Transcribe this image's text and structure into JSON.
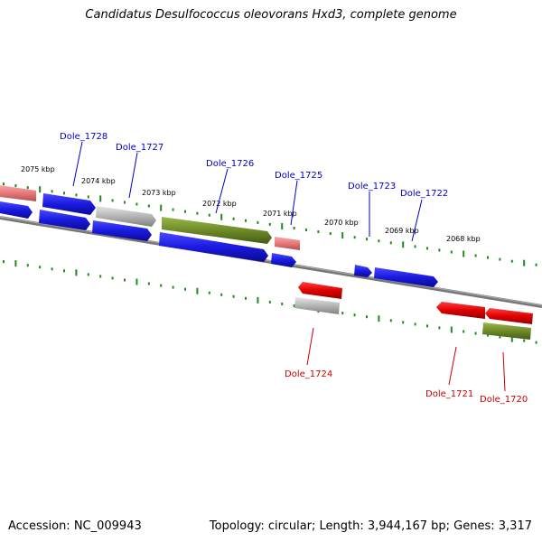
{
  "title": "Candidatus Desulfococcus oleovorans Hxd3, complete genome",
  "footer": {
    "accession": "Accession: NC_009943",
    "topology": "Topology: circular; Length: 3,944,167 bp; Genes: 3,317"
  },
  "colors": {
    "blue": "#1a1ae0",
    "red": "#e00000",
    "pink": "#e87878",
    "grey": "#b4b4b4",
    "olive": "#6e8a28",
    "tick_green": "#1f8a1f",
    "backbone": "#777777"
  },
  "scale_labels": [
    "2075 kbp",
    "2074 kbp",
    "2073 kbp",
    "2072 kbp",
    "2071 kbp",
    "2070 kbp",
    "2069 kbp",
    "2068 kbp"
  ],
  "forward_gene_labels": [
    "Dole_1728",
    "Dole_1727",
    "Dole_1726",
    "Dole_1725",
    "Dole_1723",
    "Dole_1722"
  ],
  "reverse_gene_labels": [
    "Dole_1724",
    "Dole_1721",
    "Dole_1720"
  ]
}
